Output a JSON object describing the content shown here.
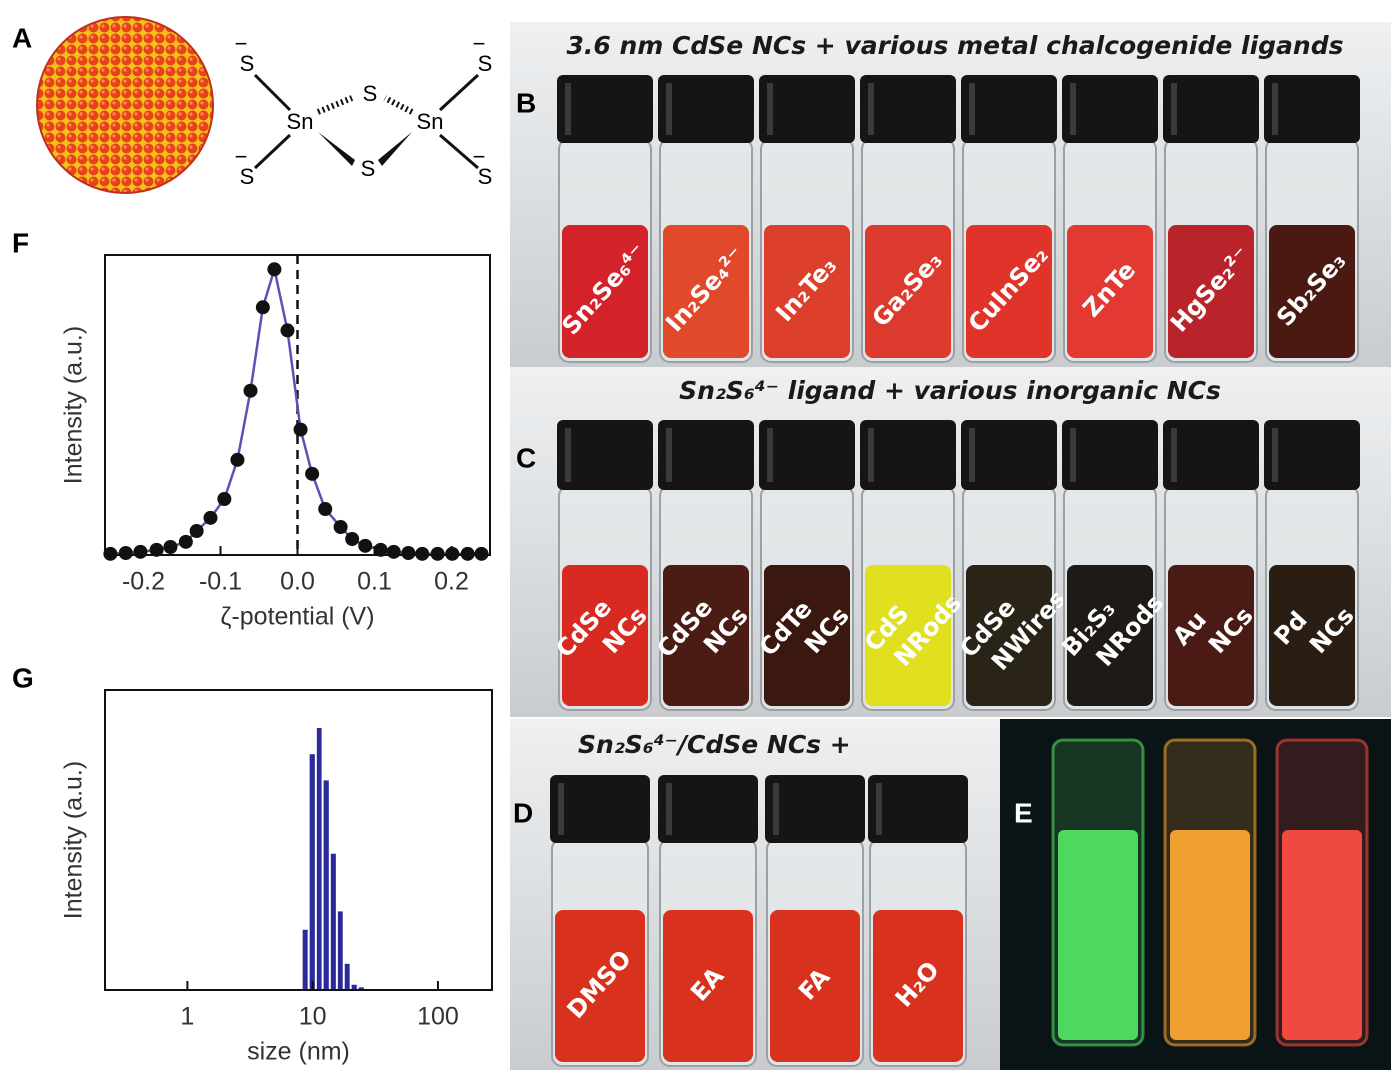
{
  "panels": {
    "A": {
      "letter": "A",
      "atoms": [
        {
          "symbol": "S",
          "charge": "−"
        },
        {
          "symbol": "Sn"
        },
        {
          "symbol": "S"
        },
        {
          "symbol": "Sn"
        },
        {
          "symbol": "S"
        },
        {
          "symbol": "S",
          "charge": "−"
        },
        {
          "symbol": "S",
          "charge": "−"
        },
        {
          "symbol": "S",
          "charge": "−"
        }
      ]
    },
    "B": {
      "letter": "B",
      "title": "3.6 nm CdSe NCs + various metal chalcogenide ligands",
      "vials": [
        {
          "label": [
            "Sn₂Se₆⁴⁻"
          ],
          "color": "#d3222a"
        },
        {
          "label": [
            "In₂Se₄²⁻"
          ],
          "color": "#e04a2a"
        },
        {
          "label": [
            "In₂Te₃"
          ],
          "color": "#dc3f2c"
        },
        {
          "label": [
            "Ga₂Se₃"
          ],
          "color": "#dc3a2c"
        },
        {
          "label": [
            "CuInSe₂"
          ],
          "color": "#e0342a"
        },
        {
          "label": [
            "ZnTe"
          ],
          "color": "#e23a32"
        },
        {
          "label": [
            "HgSe₂²⁻"
          ],
          "color": "#b8242a"
        },
        {
          "label": [
            "Sb₂Se₃"
          ],
          "color": "#4a1a12"
        }
      ]
    },
    "C": {
      "letter": "C",
      "title": "Sn₂S₆⁴⁻ ligand + various inorganic NCs",
      "vials": [
        {
          "label": [
            "CdSe",
            "NCs"
          ],
          "color": "#d82a20"
        },
        {
          "label": [
            "CdSe",
            "NCs"
          ],
          "color": "#4a1c14"
        },
        {
          "label": [
            "CdTe",
            "NCs"
          ],
          "color": "#3a1810"
        },
        {
          "label": [
            "CdS",
            "NRods"
          ],
          "color": "#e0e020"
        },
        {
          "label": [
            "CdSe",
            "NWires"
          ],
          "color": "#2a2418"
        },
        {
          "label": [
            "Bi₂S₃",
            "NRods"
          ],
          "color": "#1e1a16"
        },
        {
          "label": [
            "Au",
            "NCs"
          ],
          "color": "#4a1a14"
        },
        {
          "label": [
            "Pd",
            "NCs"
          ],
          "color": "#2a1e14"
        }
      ]
    },
    "D": {
      "letter": "D",
      "title": "Sn₂S₆⁴⁻/CdSe NCs +",
      "vials": [
        {
          "label": [
            "DMSO"
          ],
          "color": "#d8321e"
        },
        {
          "label": [
            "EA"
          ],
          "color": "#d8321e"
        },
        {
          "label": [
            "FA"
          ],
          "color": "#d8321e"
        },
        {
          "label": [
            "H₂O"
          ],
          "color": "#d8321e"
        }
      ]
    },
    "E": {
      "letter": "E",
      "vials": [
        {
          "color": "#4fd860"
        },
        {
          "color": "#f0a030"
        },
        {
          "color": "#f04a40"
        }
      ]
    }
  },
  "chart_data": [
    {
      "type": "scatter-line",
      "panel_label": "F",
      "x_label": "ζ-potential (V)",
      "y_label": "Intensity (a.u.)",
      "x": [
        -0.243,
        -0.223,
        -0.204,
        -0.183,
        -0.165,
        -0.145,
        -0.131,
        -0.113,
        -0.095,
        -0.078,
        -0.061,
        -0.045,
        -0.03,
        -0.013,
        0.004,
        0.019,
        0.036,
        0.056,
        0.071,
        0.088,
        0.108,
        0.125,
        0.144,
        0.162,
        0.182,
        0.201,
        0.221,
        0.239
      ],
      "values": [
        0.004,
        0.007,
        0.011,
        0.018,
        0.028,
        0.046,
        0.084,
        0.13,
        0.196,
        0.333,
        0.575,
        0.867,
        1.0,
        0.786,
        0.439,
        0.284,
        0.161,
        0.098,
        0.056,
        0.032,
        0.018,
        0.011,
        0.007,
        0.004,
        0.004,
        0.004,
        0.004,
        0.004
      ],
      "color": "#111111",
      "line_color": "#5b52b5",
      "reference_line_x": 0,
      "xlim": [
        -0.25,
        0.25
      ],
      "xticks": [
        -0.2,
        -0.1,
        {
          "value": 0,
          "label": "0.0"
        },
        0.1,
        0.2
      ],
      "ylim": [
        0,
        1.05
      ]
    },
    {
      "type": "histogram",
      "panel_label": "G",
      "x_label": "size (nm)",
      "y_label": "Intensity (a.u.)",
      "x_log": true,
      "bins": [
        8.17,
        9.29,
        10.6,
        12.0,
        13.7,
        15.6,
        17.7,
        20.1,
        22.9,
        26.1
      ],
      "values": [
        0.23,
        0.9,
        1.0,
        0.8,
        0.52,
        0.3,
        0.1,
        0.02,
        0.01
      ],
      "color": "#2a2a9a",
      "xlim": [
        0.22,
        270
      ],
      "xticks": [
        1,
        10,
        100
      ],
      "ylim": [
        0,
        1.145
      ]
    }
  ]
}
